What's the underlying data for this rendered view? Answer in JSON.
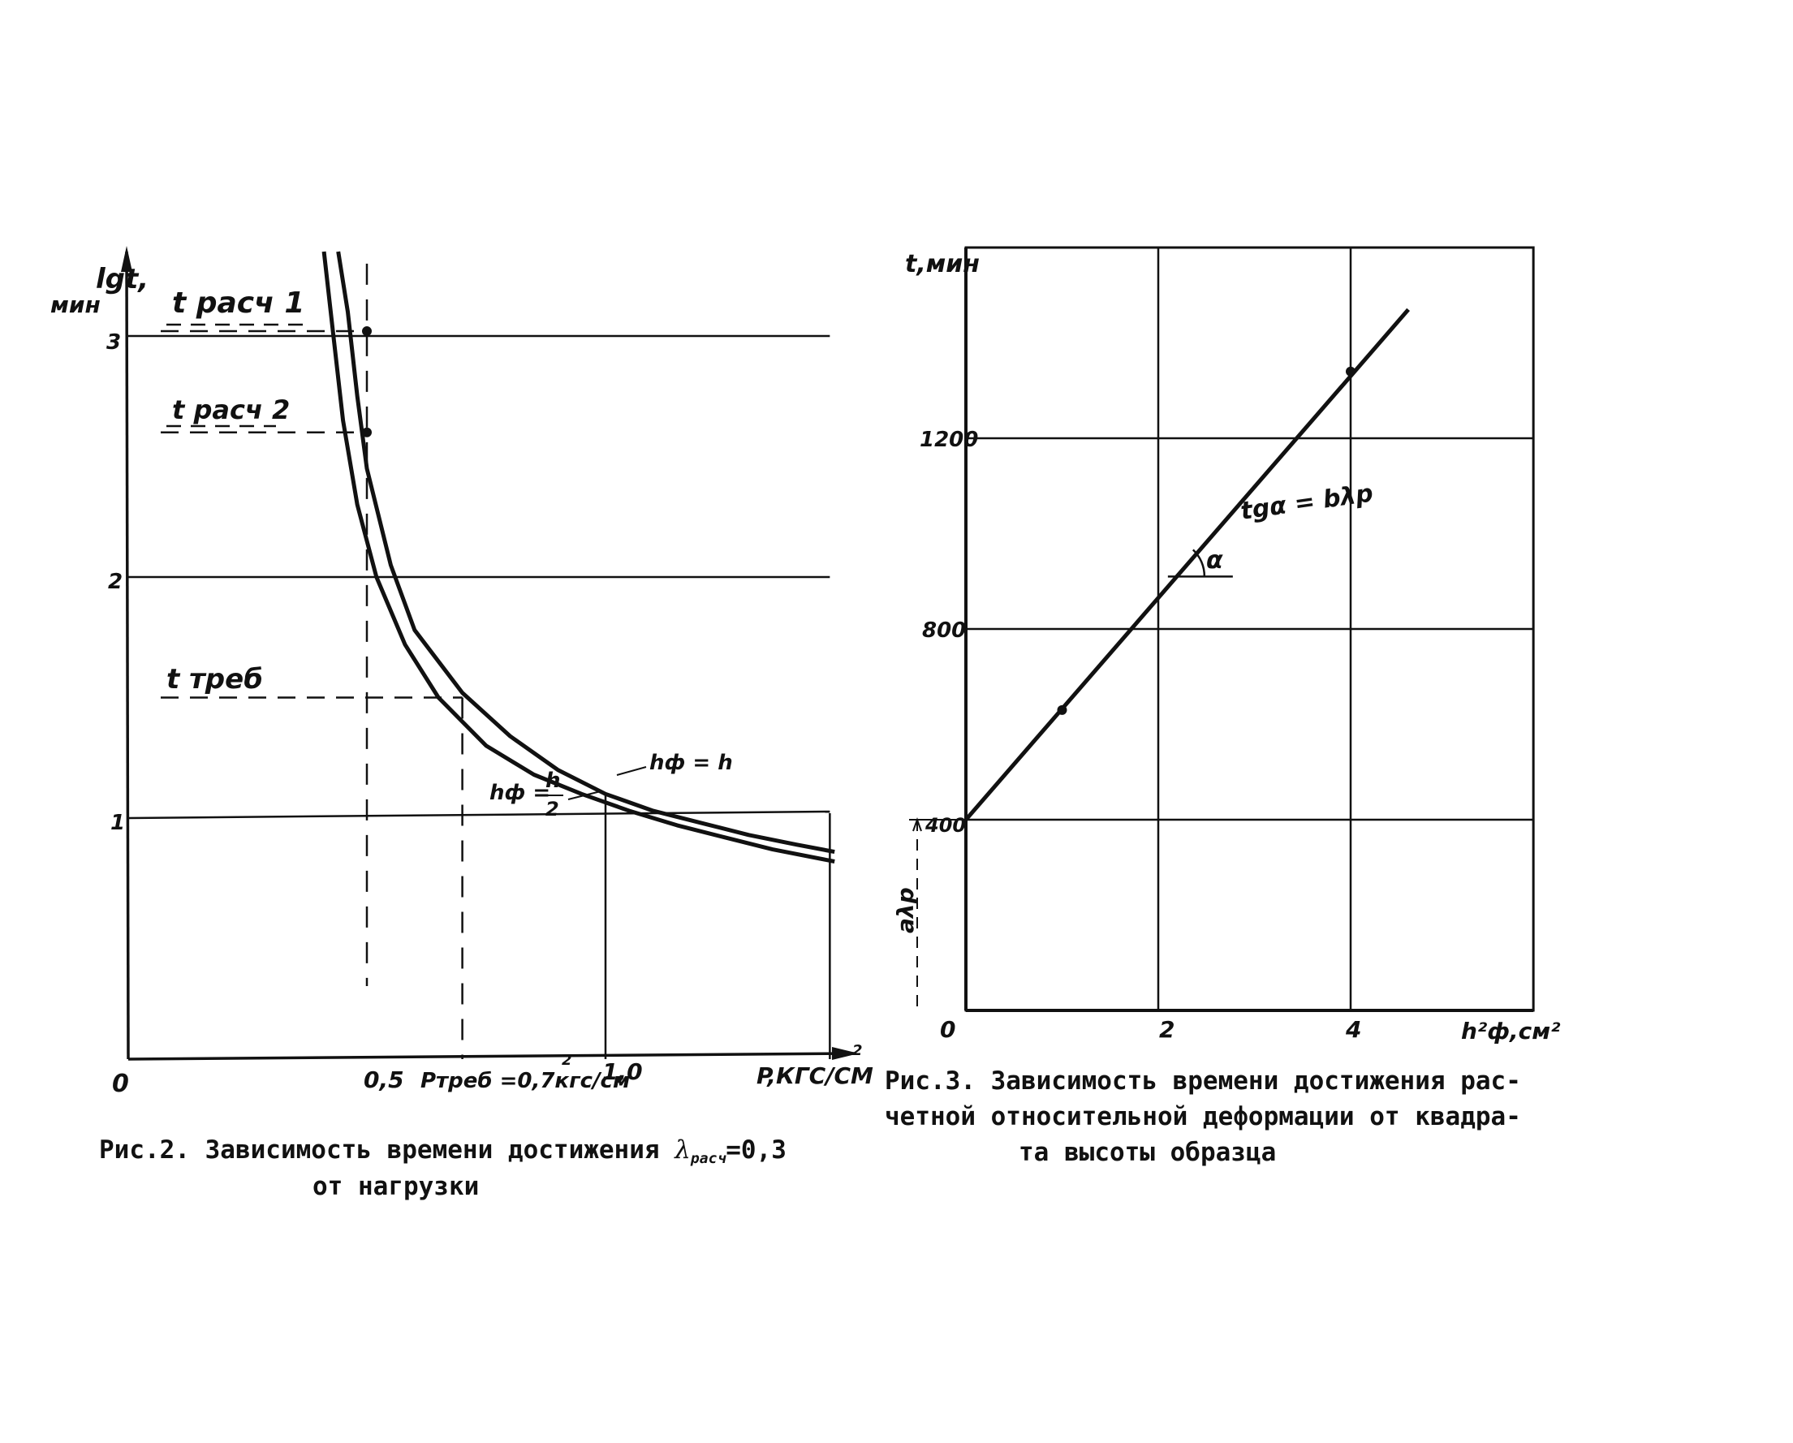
{
  "chart_data": [
    {
      "type": "line",
      "figure": "fig2",
      "ylabel": "lgt,",
      "ylabel_unit": "мин",
      "xlabel": "P,КГС/СМ",
      "x_origin_label": "0",
      "x_tick_labels": [
        "0,5",
        "1,0"
      ],
      "y_tick_labels": [
        "1",
        "2",
        "3"
      ],
      "xlim": [
        0,
        1.5
      ],
      "ylim": [
        0,
        3.2
      ],
      "grid": true,
      "series": [
        {
          "name": "hф = h",
          "points": [
            [
              0.44,
              3.35
            ],
            [
              0.46,
              3.1
            ],
            [
              0.48,
              2.75
            ],
            [
              0.5,
              2.45
            ],
            [
              0.55,
              2.05
            ],
            [
              0.6,
              1.78
            ],
            [
              0.7,
              1.52
            ],
            [
              0.8,
              1.34
            ],
            [
              0.9,
              1.2
            ],
            [
              1.0,
              1.1
            ],
            [
              1.1,
              1.03
            ],
            [
              1.2,
              0.98
            ],
            [
              1.3,
              0.93
            ],
            [
              1.4,
              0.89
            ],
            [
              1.48,
              0.86
            ]
          ]
        },
        {
          "name": "hф = h/2",
          "points": [
            [
              0.41,
              3.35
            ],
            [
              0.43,
              3.0
            ],
            [
              0.45,
              2.65
            ],
            [
              0.48,
              2.3
            ],
            [
              0.52,
              2.0
            ],
            [
              0.58,
              1.72
            ],
            [
              0.65,
              1.5
            ],
            [
              0.75,
              1.3
            ],
            [
              0.85,
              1.18
            ],
            [
              0.95,
              1.1
            ],
            [
              1.05,
              1.03
            ],
            [
              1.15,
              0.97
            ],
            [
              1.25,
              0.92
            ],
            [
              1.35,
              0.87
            ],
            [
              1.48,
              0.82
            ]
          ]
        }
      ],
      "marked_points": [
        [
          0.5,
          3.02
        ],
        [
          0.5,
          2.6
        ]
      ],
      "reference_lines": [
        {
          "label": "t расч 1",
          "y": 3.02
        },
        {
          "label": "t расч 2",
          "y": 2.6
        },
        {
          "label": "t треб",
          "y": 1.5
        },
        {
          "label": "Pтреб =0,7кгс/см",
          "x": 0.7
        }
      ],
      "annotations": {
        "t_rasch1": "t расч 1",
        "t_rasch2": "t расч 2",
        "t_treb": "t треб",
        "p_treb": "Pтреб =0,7кгс/см",
        "hf_h": "hф = h",
        "hf_h2_left": "hф =",
        "hf_h2_num": "h",
        "hf_h2_den": "2"
      }
    },
    {
      "type": "line",
      "figure": "fig3",
      "ylabel": "t,мин",
      "xlabel": "h²ф,см²",
      "x_tick_labels": [
        "0",
        "2",
        "4"
      ],
      "y_tick_labels": [
        "400",
        "800",
        "1200"
      ],
      "xlim": [
        0,
        6
      ],
      "ylim": [
        0,
        1600
      ],
      "grid": true,
      "series": [
        {
          "name": "",
          "points": [
            [
              0,
              400
            ],
            [
              4.6,
              1470
            ]
          ]
        }
      ],
      "marked_points": [
        [
          1,
          630
        ],
        [
          4,
          1340
        ]
      ],
      "annotations": {
        "slope": "tgα = bλр",
        "alpha": "α",
        "intercept": "aλр"
      }
    }
  ],
  "captions": {
    "fig2_line1_pre": "Рис.2. Зависимость времени достижения",
    "fig2_lambda": "λ",
    "fig2_lambda_sub": "расч",
    "fig2_value": "=0,3",
    "fig2_line2": "от нагрузки",
    "fig3_line1": "Рис.3. Зависимость времени достижения рас-",
    "fig3_line2": "четной относительной деформации от квадра-",
    "fig3_line3": "та высоты образца"
  }
}
